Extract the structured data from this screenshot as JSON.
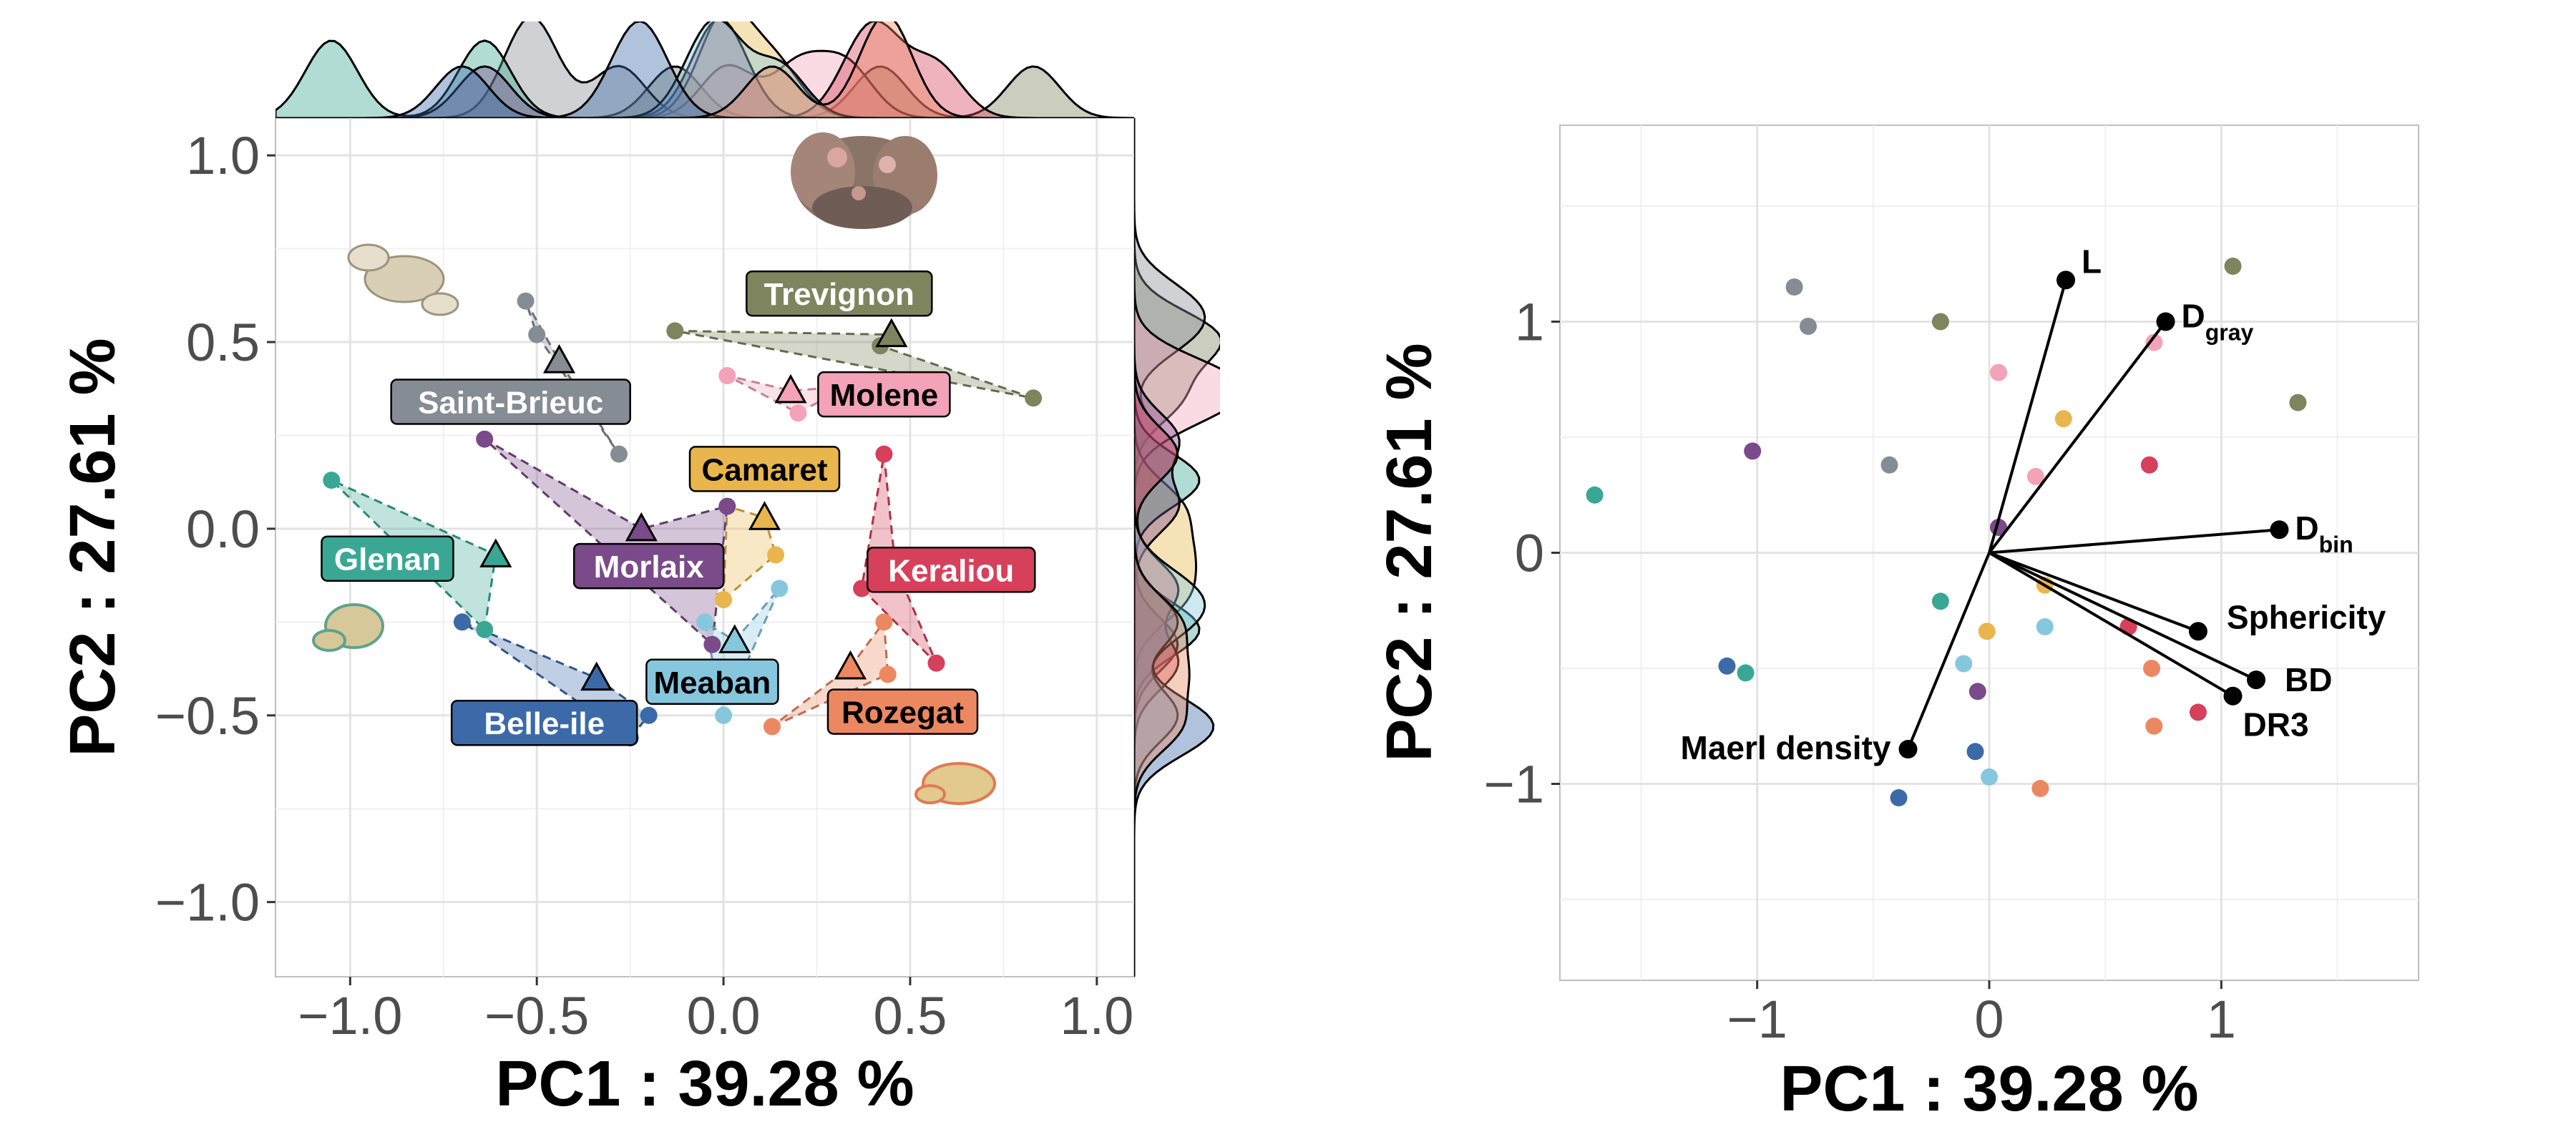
{
  "colors": {
    "Trevignon": "#7e845e",
    "Saint-Brieuc": "#868c94",
    "Molene": "#f3a2b8",
    "Camaret": "#e8b64c",
    "Glenan": "#3aa794",
    "Morlaix": "#7a4a8a",
    "Keraliou": "#d6405a",
    "Meaban": "#86c7de",
    "Belle-ile": "#3c6aa8",
    "Rozegat": "#ec8861"
  },
  "chart_data": [
    {
      "type": "scatter",
      "panel": "left",
      "xlabel": "PC1 :  39.28 %",
      "ylabel": "PC2 :  27.61 %",
      "xlim": [
        -1.2,
        1.1
      ],
      "ylim": [
        -1.2,
        1.1
      ],
      "x_ticks": [
        -1.0,
        -0.5,
        0.0,
        0.5,
        1.0
      ],
      "x_tick_labels": [
        "−1.0",
        "−0.5",
        "0.0",
        "0.5",
        "1.0"
      ],
      "y_ticks": [
        -1.0,
        -0.5,
        0.0,
        0.5,
        1.0
      ],
      "y_tick_labels": [
        "−1.0",
        "−0.5",
        "0.0",
        "0.5",
        "1.0"
      ],
      "grid": true,
      "marginal_densities": [
        "top",
        "right"
      ],
      "groups": [
        {
          "name": "Trevignon",
          "points": [
            [
              -0.13,
              0.53
            ],
            [
              0.83,
              0.35
            ],
            [
              0.42,
              0.49
            ]
          ],
          "centroid": [
            0.45,
            0.52
          ]
        },
        {
          "name": "Saint-Brieuc",
          "points": [
            [
              -0.53,
              0.61
            ],
            [
              -0.5,
              0.52
            ],
            [
              -0.28,
              0.2
            ]
          ],
          "centroid": [
            -0.44,
            0.45
          ]
        },
        {
          "name": "Molene",
          "points": [
            [
              0.01,
              0.41
            ],
            [
              0.2,
              0.31
            ],
            [
              0.33,
              0.38
            ]
          ],
          "centroid": [
            0.18,
            0.37
          ]
        },
        {
          "name": "Camaret",
          "points": [
            [
              0.01,
              0.06
            ],
            [
              0.14,
              -0.07
            ],
            [
              0.0,
              -0.19
            ]
          ],
          "centroid": [
            0.11,
            0.03
          ]
        },
        {
          "name": "Glenan",
          "points": [
            [
              -1.05,
              0.13
            ],
            [
              -0.64,
              -0.27
            ]
          ],
          "centroid": [
            -0.61,
            -0.07
          ]
        },
        {
          "name": "Morlaix",
          "points": [
            [
              -0.64,
              0.24
            ],
            [
              0.01,
              0.06
            ],
            [
              -0.03,
              -0.31
            ]
          ],
          "centroid": [
            -0.22,
            0.0
          ]
        },
        {
          "name": "Keraliou",
          "points": [
            [
              0.43,
              0.2
            ],
            [
              0.37,
              -0.16
            ],
            [
              0.57,
              -0.36
            ]
          ],
          "centroid": [
            0.46,
            -0.1
          ]
        },
        {
          "name": "Meaban",
          "points": [
            [
              0.15,
              -0.16
            ],
            [
              -0.05,
              -0.25
            ],
            [
              0.0,
              -0.5
            ]
          ],
          "centroid": [
            0.03,
            -0.3
          ]
        },
        {
          "name": "Belle-ile",
          "points": [
            [
              -0.7,
              -0.25
            ],
            [
              -0.25,
              -0.56
            ],
            [
              -0.2,
              -0.5
            ]
          ],
          "centroid": [
            -0.34,
            -0.4
          ]
        },
        {
          "name": "Rozegat",
          "points": [
            [
              0.13,
              -0.53
            ],
            [
              0.43,
              -0.25
            ],
            [
              0.44,
              -0.39
            ]
          ],
          "centroid": [
            0.34,
            -0.37
          ]
        }
      ],
      "labels": [
        {
          "text": "Trevignon",
          "group": "Trevignon",
          "at": [
            0.31,
            0.63
          ]
        },
        {
          "text": "Saint-Brieuc",
          "group": "Saint-Brieuc",
          "at": [
            -0.57,
            0.34
          ]
        },
        {
          "text": "Molene",
          "group": "Molene",
          "at": [
            0.43,
            0.36
          ]
        },
        {
          "text": "Camaret",
          "group": "Camaret",
          "at": [
            0.11,
            0.16
          ]
        },
        {
          "text": "Glenan",
          "group": "Glenan",
          "at": [
            -0.9,
            -0.08
          ]
        },
        {
          "text": "Morlaix",
          "group": "Morlaix",
          "at": [
            -0.2,
            -0.1
          ]
        },
        {
          "text": "Keraliou",
          "group": "Keraliou",
          "at": [
            0.61,
            -0.11
          ]
        },
        {
          "text": "Meaban",
          "group": "Meaban",
          "at": [
            -0.03,
            -0.41
          ]
        },
        {
          "text": "Belle-ile",
          "group": "Belle-ile",
          "at": [
            -0.48,
            -0.52
          ]
        },
        {
          "text": "Rozegat",
          "group": "Rozegat",
          "at": [
            0.48,
            -0.49
          ]
        }
      ]
    },
    {
      "type": "scatter",
      "panel": "right",
      "xlabel": "PC1 :  39.28 %",
      "ylabel": "PC2 :  27.61 %",
      "xlim": [
        -1.85,
        1.85
      ],
      "ylim": [
        -1.85,
        1.85
      ],
      "x_ticks": [
        -1,
        0,
        1
      ],
      "x_tick_labels": [
        "−1",
        "0",
        "1"
      ],
      "y_ticks": [
        -1,
        0,
        1
      ],
      "y_tick_labels": [
        "−1",
        "0",
        "1"
      ],
      "grid": true,
      "points": [
        {
          "x": -0.84,
          "y": 1.15,
          "group": "Saint-Brieuc"
        },
        {
          "x": -0.78,
          "y": 0.98,
          "group": "Saint-Brieuc"
        },
        {
          "x": -0.43,
          "y": 0.38,
          "group": "Saint-Brieuc"
        },
        {
          "x": -0.21,
          "y": 1.0,
          "group": "Trevignon"
        },
        {
          "x": 1.05,
          "y": 1.24,
          "group": "Trevignon"
        },
        {
          "x": 1.33,
          "y": 0.65,
          "group": "Trevignon"
        },
        {
          "x": -1.7,
          "y": 0.25,
          "group": "Glenan"
        },
        {
          "x": -1.05,
          "y": -0.52,
          "group": "Glenan"
        },
        {
          "x": -0.21,
          "y": -0.21,
          "group": "Glenan"
        },
        {
          "x": -1.02,
          "y": 0.44,
          "group": "Morlaix"
        },
        {
          "x": 0.04,
          "y": 0.11,
          "group": "Morlaix"
        },
        {
          "x": -0.05,
          "y": -0.6,
          "group": "Morlaix"
        },
        {
          "x": 0.04,
          "y": 0.78,
          "group": "Molene"
        },
        {
          "x": 0.71,
          "y": 0.91,
          "group": "Molene"
        },
        {
          "x": 0.2,
          "y": 0.33,
          "group": "Molene"
        },
        {
          "x": 0.32,
          "y": 0.58,
          "group": "Camaret"
        },
        {
          "x": -0.01,
          "y": -0.34,
          "group": "Camaret"
        },
        {
          "x": 0.24,
          "y": -0.14,
          "group": "Camaret"
        },
        {
          "x": 0.69,
          "y": 0.38,
          "group": "Keraliou"
        },
        {
          "x": 0.6,
          "y": -0.32,
          "group": "Keraliou"
        },
        {
          "x": 0.9,
          "y": -0.69,
          "group": "Keraliou"
        },
        {
          "x": -1.13,
          "y": -0.49,
          "group": "Belle-ile"
        },
        {
          "x": -0.06,
          "y": -0.86,
          "group": "Belle-ile"
        },
        {
          "x": -0.39,
          "y": -1.06,
          "group": "Belle-ile"
        },
        {
          "x": 0.24,
          "y": -0.32,
          "group": "Meaban"
        },
        {
          "x": -0.11,
          "y": -0.48,
          "group": "Meaban"
        },
        {
          "x": 0.0,
          "y": -0.97,
          "group": "Meaban"
        },
        {
          "x": 0.7,
          "y": -0.5,
          "group": "Rozegat"
        },
        {
          "x": 0.71,
          "y": -0.75,
          "group": "Rozegat"
        },
        {
          "x": 0.22,
          "y": -1.02,
          "group": "Rozegat"
        }
      ],
      "loadings": [
        {
          "name": "L",
          "x": 0.33,
          "y": 1.18
        },
        {
          "name": "D",
          "sub": "gray",
          "x": 0.76,
          "y": 1.0
        },
        {
          "name": "D",
          "sub": "bin",
          "x": 1.25,
          "y": 0.1
        },
        {
          "name": "Sphericity",
          "x": 0.9,
          "y": -0.34
        },
        {
          "name": "BD",
          "x": 1.15,
          "y": -0.55
        },
        {
          "name": "DR3",
          "x": 1.05,
          "y": -0.62
        },
        {
          "name": "Maerl density",
          "x": -0.35,
          "y": -0.85
        }
      ]
    }
  ]
}
